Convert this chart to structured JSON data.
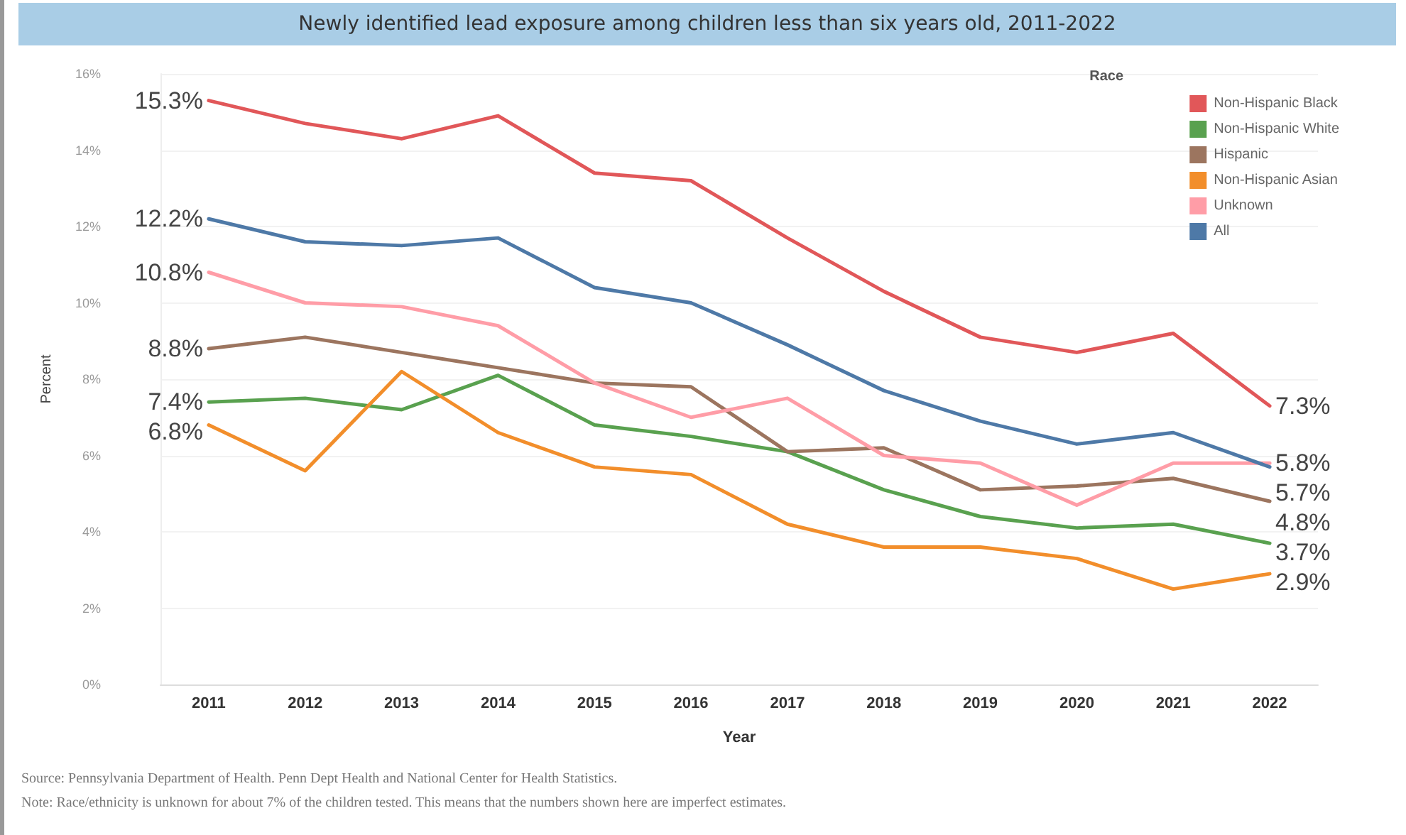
{
  "chart_data": {
    "type": "line",
    "title": "Newly identified lead exposure among children less than six years old, 2011-2022",
    "xlabel": "Year",
    "ylabel": "Percent",
    "legend_title": "Race",
    "legend": "top right",
    "grid": "y",
    "marker": "none",
    "line_style": "solid",
    "categories": [
      "2011",
      "2012",
      "2013",
      "2014",
      "2015",
      "2016",
      "2017",
      "2018",
      "2019",
      "2020",
      "2021",
      "2022"
    ],
    "ylim": [
      0,
      16
    ],
    "yticks": [
      {
        "value": 0,
        "label": "0%"
      },
      {
        "value": 2,
        "label": "2%"
      },
      {
        "value": 4,
        "label": "4%"
      },
      {
        "value": 6,
        "label": "6%"
      },
      {
        "value": 8,
        "label": "8%"
      },
      {
        "value": 10,
        "label": "10%"
      },
      {
        "value": 12,
        "label": "12%"
      },
      {
        "value": 14,
        "label": "14%"
      },
      {
        "value": 16,
        "label": "16%"
      }
    ],
    "series": [
      {
        "name": "Non-Hispanic Black",
        "color": "#e15759",
        "values": [
          15.3,
          14.7,
          14.3,
          14.9,
          13.4,
          13.2,
          11.7,
          10.3,
          9.1,
          8.7,
          9.2,
          7.3
        ],
        "value_labels": [
          "15.3%",
          null,
          null,
          null,
          null,
          null,
          null,
          null,
          null,
          null,
          null,
          "7.3%"
        ]
      },
      {
        "name": "Non-Hispanic White",
        "color": "#59a14f",
        "values": [
          7.4,
          7.5,
          7.2,
          8.1,
          6.8,
          6.5,
          6.1,
          5.1,
          4.4,
          4.1,
          4.2,
          3.7
        ],
        "value_labels": [
          "7.4%",
          null,
          null,
          null,
          null,
          null,
          null,
          null,
          null,
          null,
          null,
          "3.7%"
        ]
      },
      {
        "name": "Hispanic",
        "color": "#9c755f",
        "values": [
          8.8,
          9.1,
          8.7,
          8.3,
          7.9,
          7.8,
          6.1,
          6.2,
          5.1,
          5.2,
          5.4,
          4.8
        ],
        "value_labels": [
          "8.8%",
          null,
          null,
          null,
          null,
          null,
          null,
          null,
          null,
          null,
          null,
          "4.8%"
        ]
      },
      {
        "name": "Non-Hispanic Asian",
        "color": "#f28e2b",
        "values": [
          6.8,
          5.6,
          8.2,
          6.6,
          5.7,
          5.5,
          4.2,
          3.6,
          3.6,
          3.3,
          2.5,
          2.9
        ],
        "value_labels": [
          "6.8%",
          null,
          null,
          null,
          null,
          null,
          null,
          null,
          null,
          null,
          null,
          "2.9%"
        ]
      },
      {
        "name": "Unknown",
        "color": "#ff9da7",
        "values": [
          10.8,
          10.0,
          9.9,
          9.4,
          7.9,
          7.0,
          7.5,
          6.0,
          5.8,
          4.7,
          5.8,
          5.8
        ],
        "value_labels": [
          "10.8%",
          null,
          null,
          null,
          null,
          null,
          null,
          null,
          null,
          null,
          null,
          "5.8%"
        ]
      },
      {
        "name": "All",
        "color": "#4e79a7",
        "values": [
          12.2,
          11.6,
          11.5,
          11.7,
          10.4,
          10.0,
          8.9,
          7.7,
          6.9,
          6.3,
          6.6,
          5.7
        ],
        "value_labels": [
          "12.2%",
          null,
          null,
          null,
          null,
          null,
          null,
          null,
          null,
          null,
          null,
          "5.7%"
        ]
      }
    ],
    "annotations": [
      "Source: Pennsylvania Department of Health.  Penn Dept Health and National Center for Health Statistics.",
      "Note: Race/ethnicity is unknown for about 7% of the children tested. This means that the numbers shown here are imperfect estimates."
    ]
  }
}
